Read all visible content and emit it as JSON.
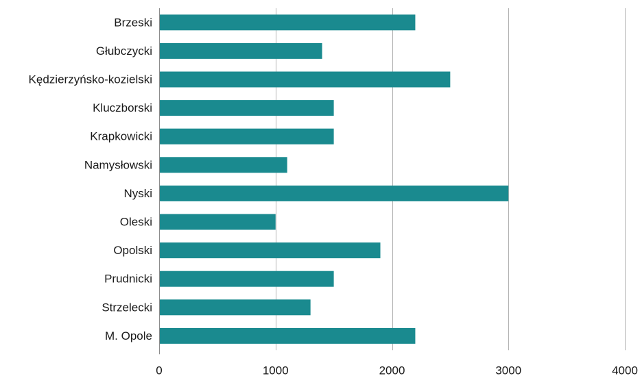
{
  "chart_data": {
    "type": "bar",
    "orientation": "horizontal",
    "title": "",
    "xlabel": "",
    "ylabel": "",
    "categories": [
      "Brzeski",
      "Głubczycki",
      "Kędzierzyńsko-kozielski",
      "Kluczborski",
      "Krapkowicki",
      "Namysłowski",
      "Nyski",
      "Oleski",
      "Opolski",
      "Prudnicki",
      "Strzelecki",
      "M. Opole"
    ],
    "values": [
      2200,
      1400,
      2500,
      1500,
      1500,
      1100,
      3000,
      1000,
      1900,
      1500,
      1300,
      2200
    ],
    "xlim": [
      0,
      4000
    ],
    "xticks": [
      0,
      1000,
      2000,
      3000,
      4000
    ],
    "xtick_labels": [
      "0",
      "1000",
      "2000",
      "3000",
      "4000"
    ],
    "grid": "vertical",
    "legend": "none",
    "bar_color": "#1a8a8f"
  }
}
